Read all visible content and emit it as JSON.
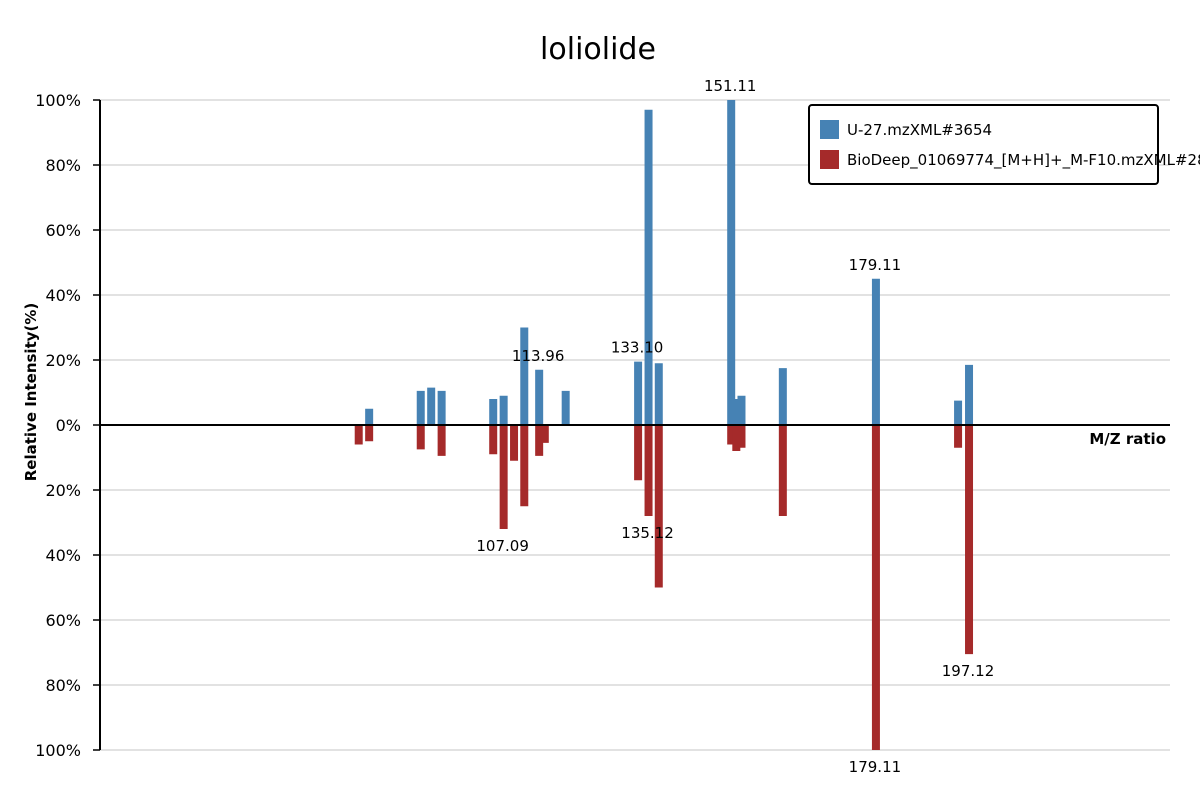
{
  "chart_data": {
    "type": "bar",
    "title": "loliolide",
    "xlabel": "M/Z ratio",
    "ylabel": "Relative Intensity(%)",
    "ylim": [
      -100,
      100
    ],
    "y_ticks": [
      "100%",
      "80%",
      "60%",
      "40%",
      "20%",
      "0%",
      "20%",
      "40%",
      "60%",
      "80%",
      "100%"
    ],
    "grid": true,
    "legend_position": "top-right",
    "colors": {
      "top": "#4682b4",
      "bottom": "#a52a2a"
    },
    "series": [
      {
        "name": "U-27.mzXML#3654",
        "x": [
          79.05,
          81.07,
          91.05,
          93.07,
          95.09,
          105.07,
          107.09,
          109.1,
          111.08,
          113.96,
          115.05,
          119.09,
          133.1,
          135.12,
          137.1,
          151.11,
          152.1,
          153.1,
          161.1,
          175.0,
          179.11,
          195.0,
          197.12
        ],
        "values": [
          0,
          5,
          10.5,
          11.5,
          10.5,
          8,
          9,
          0,
          30,
          17,
          0,
          10.5,
          19.5,
          97,
          19,
          100,
          8,
          9,
          17.5,
          0,
          45,
          7.5,
          18.5
        ]
      },
      {
        "name": "BioDeep_01069774_[M+H]+_M-F10.mzXML#28",
        "x": [
          79.05,
          81.07,
          91.05,
          93.07,
          95.09,
          105.07,
          107.09,
          109.1,
          111.08,
          113.96,
          115.05,
          119.09,
          133.1,
          135.12,
          137.1,
          151.11,
          152.1,
          153.1,
          161.1,
          175.0,
          179.11,
          195.0,
          197.12
        ],
        "values": [
          6,
          5,
          7.5,
          0,
          9.5,
          9,
          32,
          11,
          25,
          9.5,
          5.5,
          0,
          17,
          28,
          50,
          6,
          8,
          7,
          28,
          0,
          100,
          7,
          70.5
        ]
      }
    ],
    "x_range": [
      29,
      236
    ],
    "labels_top": [
      {
        "mz": 113.96,
        "text": "113.96"
      },
      {
        "mz": 133.1,
        "text": "133.10"
      },
      {
        "mz": 151.11,
        "text": "151.11"
      },
      {
        "mz": 179.11,
        "text": "179.11"
      }
    ],
    "labels_bottom": [
      {
        "mz": 107.09,
        "text": "107.09"
      },
      {
        "mz": 135.12,
        "text": "135.12"
      },
      {
        "mz": 179.11,
        "text": "179.11"
      },
      {
        "mz": 197.12,
        "text": "197.12"
      }
    ]
  }
}
